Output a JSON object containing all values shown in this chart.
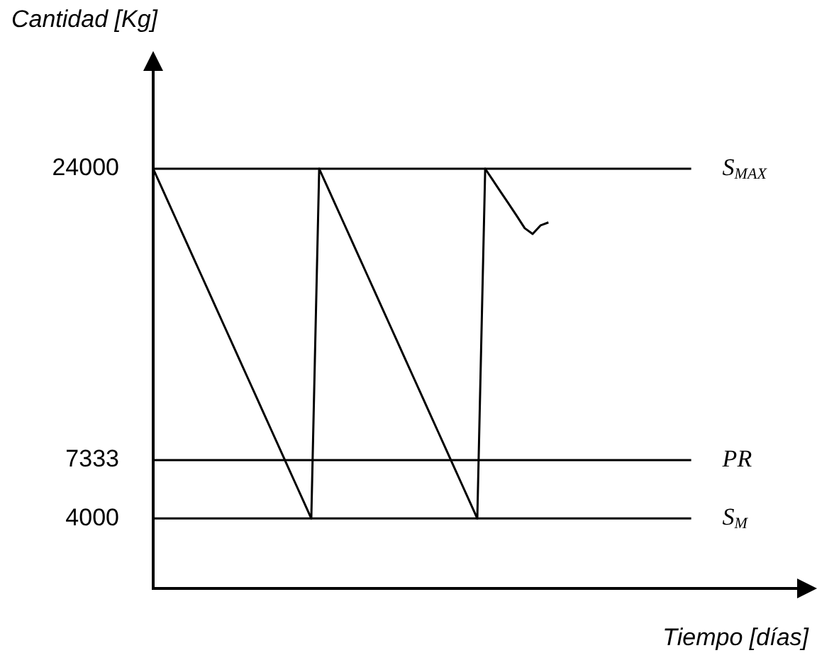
{
  "chart_data": {
    "type": "line",
    "xlabel": "Tiempo [días]",
    "ylabel": "Cantidad [Kg]",
    "categories": [
      null,
      null,
      null,
      null,
      null,
      null,
      null,
      null,
      null,
      null,
      null,
      null,
      null,
      null,
      null,
      null,
      null,
      null,
      null,
      null,
      null,
      null,
      null,
      null,
      null,
      null,
      null,
      null,
      null,
      null,
      null,
      null,
      null,
      null,
      null,
      null,
      null,
      null,
      null,
      null,
      null,
      null,
      null,
      null,
      null,
      null,
      null,
      null,
      null,
      null,
      null,
      null,
      null,
      null,
      null,
      null,
      null,
      null,
      null,
      null,
      null,
      null,
      null,
      null,
      null,
      null,
      null,
      null,
      null,
      null,
      null,
      null,
      null,
      null,
      null,
      null,
      null,
      null,
      null,
      null,
      null,
      null,
      null
    ],
    "series": [
      {
        "color": "#000000",
        "values": [
          24000,
          23000,
          22000,
          21000,
          20000,
          19000,
          18000,
          17000,
          16000,
          15000,
          14000,
          13000,
          12000,
          11000,
          10000,
          9000,
          8000,
          7000,
          6000,
          5000,
          4000,
          24000,
          23000,
          22000,
          21000,
          20000,
          19000,
          18000,
          17000,
          16000,
          15000,
          14000,
          13000,
          12000,
          11000,
          10000,
          9000,
          8000,
          7000,
          6000,
          5000,
          4000,
          24000,
          23325,
          22650,
          21975,
          21300,
          20600,
          20270,
          20760,
          20930,
          null,
          null,
          null,
          null,
          null,
          null,
          null,
          null,
          null,
          null,
          null,
          null,
          null,
          null,
          null,
          null,
          null,
          null,
          null,
          null,
          null,
          null,
          null,
          null,
          null,
          null,
          null,
          null,
          null,
          null,
          null,
          null
        ]
      }
    ],
    "ylim": [
      0,
      30000
    ],
    "yticks": [
      4000,
      7333,
      24000
    ],
    "tick_labels": "y",
    "grid": false,
    "legend": false,
    "marker": "none",
    "line_style": "solid",
    "ref_lines": [
      {
        "axis": "y",
        "value": 24000,
        "label": "S$_{MAX}$",
        "color": "#000000"
      },
      {
        "axis": "y",
        "value": 7333,
        "label": "PR",
        "color": "#000000"
      },
      {
        "axis": "y",
        "value": 4000,
        "label": "S$_{M}$",
        "color": "#000000"
      }
    ]
  }
}
